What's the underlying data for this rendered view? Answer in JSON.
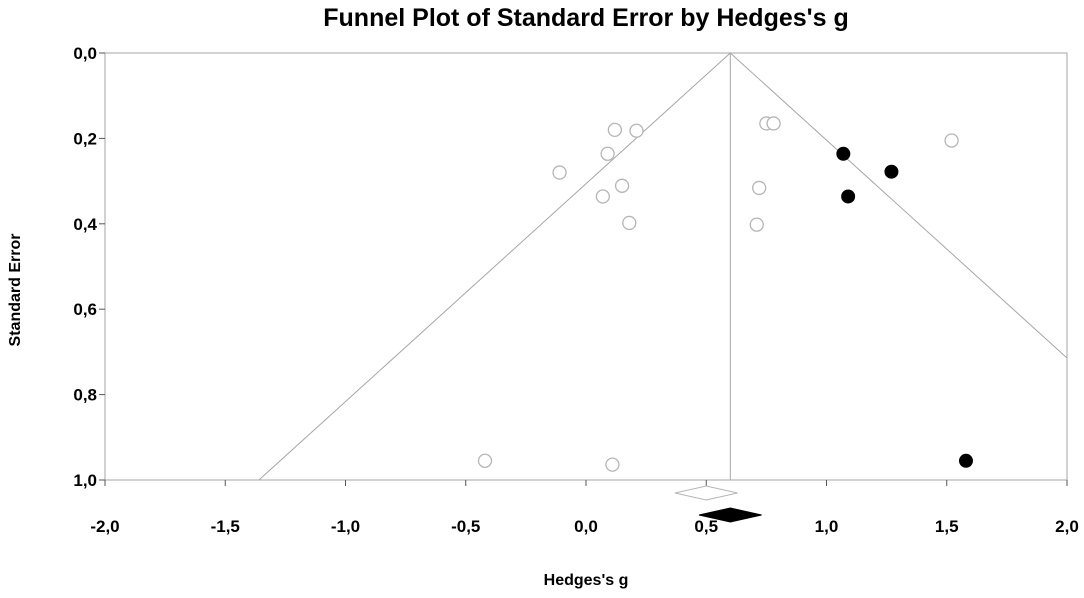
{
  "chart_data": {
    "type": "scatter",
    "title": "Funnel Plot of Standard Error by Hedges's g",
    "xlabel": "Hedges's g",
    "ylabel": "Standard Error",
    "xlim": [
      -2.0,
      2.0
    ],
    "ylim": [
      0.0,
      1.0
    ],
    "y_inverted": true,
    "x_ticks": [
      "-2,0",
      "-1,5",
      "-1,0",
      "-0,5",
      "0,0",
      "0,5",
      "1,0",
      "1,5",
      "2,0"
    ],
    "x_tick_values": [
      -2.0,
      -1.5,
      -1.0,
      -0.5,
      0.0,
      0.5,
      1.0,
      1.5,
      2.0
    ],
    "y_ticks": [
      "0,0",
      "0,2",
      "0,4",
      "0,6",
      "0,8",
      "1,0"
    ],
    "y_tick_values": [
      0.0,
      0.2,
      0.4,
      0.6,
      0.8,
      1.0
    ],
    "grid": false,
    "funnel": {
      "center": 0.6,
      "ci_multiplier": 1.96
    },
    "series": [
      {
        "marker": "open-circle",
        "color": "#b5b5b5",
        "points": [
          {
            "x": -0.11,
            "y": 0.28
          },
          {
            "x": 0.12,
            "y": 0.18
          },
          {
            "x": 0.21,
            "y": 0.182
          },
          {
            "x": 0.09,
            "y": 0.236
          },
          {
            "x": 0.15,
            "y": 0.311
          },
          {
            "x": 0.07,
            "y": 0.336
          },
          {
            "x": 0.18,
            "y": 0.398
          },
          {
            "x": 0.75,
            "y": 0.165
          },
          {
            "x": 0.78,
            "y": 0.165
          },
          {
            "x": 0.72,
            "y": 0.316
          },
          {
            "x": 0.71,
            "y": 0.402
          },
          {
            "x": 1.52,
            "y": 0.205
          },
          {
            "x": -0.42,
            "y": 0.955
          },
          {
            "x": 0.11,
            "y": 0.964
          }
        ]
      },
      {
        "marker": "filled-circle",
        "color": "#000000",
        "points": [
          {
            "x": 1.07,
            "y": 0.236
          },
          {
            "x": 1.27,
            "y": 0.278
          },
          {
            "x": 1.09,
            "y": 0.336
          },
          {
            "x": 1.58,
            "y": 0.955
          }
        ]
      }
    ],
    "summary_diamonds": [
      {
        "fill": "#ffffff",
        "stroke": "#b5b5b5",
        "center": 0.5,
        "low": 0.37,
        "high": 0.63
      },
      {
        "fill": "#000000",
        "stroke": "#000000",
        "center": 0.6,
        "low": 0.47,
        "high": 0.73
      }
    ]
  }
}
